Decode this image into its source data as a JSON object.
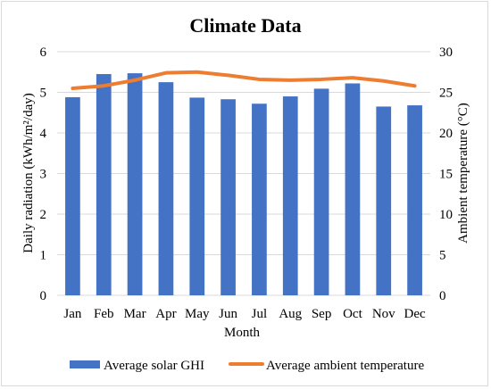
{
  "chart_data": {
    "type": "bar",
    "title": "Climate Data",
    "xlabel": "Month",
    "ylabel": "Daily radiation (kWh/m²/day)",
    "y2label": "Ambient temperature (°C)",
    "categories": [
      "Jan",
      "Feb",
      "Mar",
      "Apr",
      "May",
      "Jun",
      "Jul",
      "Aug",
      "Sep",
      "Oct",
      "Nov",
      "Dec"
    ],
    "ylim": [
      0,
      6
    ],
    "y2lim": [
      0,
      30
    ],
    "yticks": [
      "0",
      "1",
      "2",
      "3",
      "4",
      "5",
      "6"
    ],
    "y2ticks": [
      "0",
      "5",
      "10",
      "15",
      "20",
      "25",
      "30"
    ],
    "grid": true,
    "legend_position": "bottom",
    "series": [
      {
        "name": "Average solar GHI",
        "type": "bar",
        "axis": "left",
        "color": "#4472c4",
        "values": [
          4.88,
          5.45,
          5.47,
          5.25,
          4.87,
          4.83,
          4.72,
          4.9,
          5.09,
          5.22,
          4.65,
          4.68
        ]
      },
      {
        "name": "Average ambient temperature",
        "type": "line",
        "axis": "right",
        "color": "#ed7d31",
        "values": [
          25.5,
          25.8,
          26.5,
          27.4,
          27.5,
          27.1,
          26.6,
          26.5,
          26.6,
          26.8,
          26.4,
          25.8
        ]
      }
    ]
  }
}
